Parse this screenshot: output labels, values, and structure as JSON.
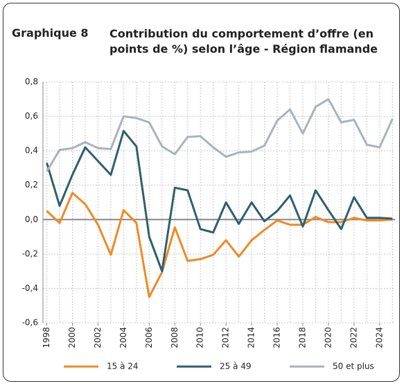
{
  "chart_data": {
    "type": "line",
    "figure_label": "Graphique 8",
    "title": "Contribution du comportement d’offre (en points de %) selon l’âge - Région flamande",
    "x": [
      1998,
      1999,
      2000,
      2001,
      2002,
      2003,
      2004,
      2005,
      2006,
      2007,
      2008,
      2009,
      2010,
      2011,
      2012,
      2013,
      2014,
      2015,
      2016,
      2017,
      2018,
      2019,
      2020,
      2021,
      2022,
      2023,
      2024,
      2025
    ],
    "series": [
      {
        "name": "15 à 24",
        "color": "#f08a24",
        "values": [
          0.05,
          -0.02,
          0.155,
          0.09,
          -0.03,
          -0.205,
          0.055,
          -0.02,
          -0.45,
          -0.305,
          -0.045,
          -0.24,
          -0.23,
          -0.205,
          -0.12,
          -0.215,
          -0.12,
          -0.06,
          -0.005,
          -0.03,
          -0.03,
          0.015,
          -0.015,
          -0.015,
          0.01,
          -0.005,
          -0.005,
          0.0
        ]
      },
      {
        "name": "25 à 49",
        "color": "#2e5f6e",
        "values": [
          0.33,
          0.08,
          0.26,
          0.42,
          0.34,
          0.26,
          0.515,
          0.425,
          -0.1,
          -0.3,
          0.185,
          0.17,
          -0.055,
          -0.075,
          0.1,
          -0.025,
          0.1,
          -0.01,
          0.05,
          0.14,
          -0.04,
          0.17,
          0.055,
          -0.055,
          0.13,
          0.01,
          0.01,
          0.005
        ]
      },
      {
        "name": "50 et plus",
        "color": "#a8b3bc",
        "values": [
          0.28,
          0.405,
          0.415,
          0.45,
          0.415,
          0.41,
          0.6,
          0.59,
          0.565,
          0.425,
          0.38,
          0.48,
          0.485,
          0.42,
          0.365,
          0.39,
          0.395,
          0.43,
          0.575,
          0.64,
          0.5,
          0.655,
          0.7,
          0.565,
          0.58,
          0.435,
          0.42,
          0.585
        ]
      }
    ],
    "xlim": [
      1997.7,
      2025.2
    ],
    "xticks": [
      1998,
      2000,
      2002,
      2004,
      2006,
      2008,
      2010,
      2012,
      2014,
      2016,
      2018,
      2020,
      2022,
      2024
    ],
    "ylim": [
      -0.6,
      0.8
    ],
    "yticks": [
      {
        "value": -0.6,
        "label": "-0,6"
      },
      {
        "value": -0.4,
        "label": "-0,4"
      },
      {
        "value": -0.2,
        "label": "-0,2"
      },
      {
        "value": 0,
        "label": "0,0"
      },
      {
        "value": 0.2,
        "label": "0,2"
      },
      {
        "value": 0.4,
        "label": "0,4"
      },
      {
        "value": 0.6,
        "label": "0,6"
      },
      {
        "value": 0.8,
        "label": "0,8"
      }
    ],
    "grid": true
  }
}
